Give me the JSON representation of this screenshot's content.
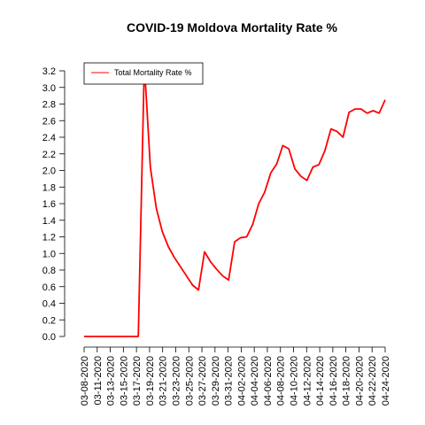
{
  "chart_data": {
    "type": "line",
    "title": "COVID-19 Moldova Mortality Rate %",
    "xlabel": "",
    "ylabel": "",
    "ylim": [
      0,
      3.2
    ],
    "y_ticks": [
      0.0,
      0.2,
      0.4,
      0.6,
      0.8,
      1.0,
      1.2,
      1.4,
      1.6,
      1.8,
      2.0,
      2.2,
      2.4,
      2.6,
      2.8,
      3.0,
      3.2
    ],
    "y_tick_labels": [
      "0.0",
      "0.2",
      "0.4",
      "0.6",
      "0.8",
      "1.0",
      "1.2",
      "1.4",
      "1.6",
      "1.8",
      "2.0",
      "2.2",
      "2.4",
      "2.6",
      "2.8",
      "3.0",
      "3.2"
    ],
    "x_tick_labels": [
      "03-08-2020",
      "03-11-2020",
      "03-13-2020",
      "03-15-2020",
      "03-17-2020",
      "03-19-2020",
      "03-21-2020",
      "03-23-2020",
      "03-25-2020",
      "03-27-2020",
      "03-29-2020",
      "03-31-2020",
      "04-02-2020",
      "04-04-2020",
      "04-06-2020",
      "04-08-2020",
      "04-10-2020",
      "04-12-2020",
      "04-14-2020",
      "04-16-2020",
      "04-18-2020",
      "04-20-2020",
      "04-22-2020",
      "04-24-2020"
    ],
    "legend_position": "top-left",
    "grid": false,
    "series": [
      {
        "name": "Total Mortality Rate %",
        "color": "#ff0000",
        "values": [
          0,
          0,
          0,
          0,
          0,
          0,
          0,
          0,
          0,
          0,
          3.33,
          2.04,
          1.54,
          1.26,
          1.08,
          0.95,
          0.84,
          0.73,
          0.62,
          0.56,
          1.02,
          0.9,
          0.81,
          0.73,
          0.68,
          1.14,
          1.19,
          1.2,
          1.35,
          1.6,
          1.74,
          1.97,
          2.08,
          2.3,
          2.26,
          2.02,
          1.93,
          1.88,
          2.04,
          2.07,
          2.24,
          2.5,
          2.47,
          2.4,
          2.7,
          2.74,
          2.74,
          2.69,
          2.72,
          2.69,
          2.85
        ]
      }
    ]
  }
}
